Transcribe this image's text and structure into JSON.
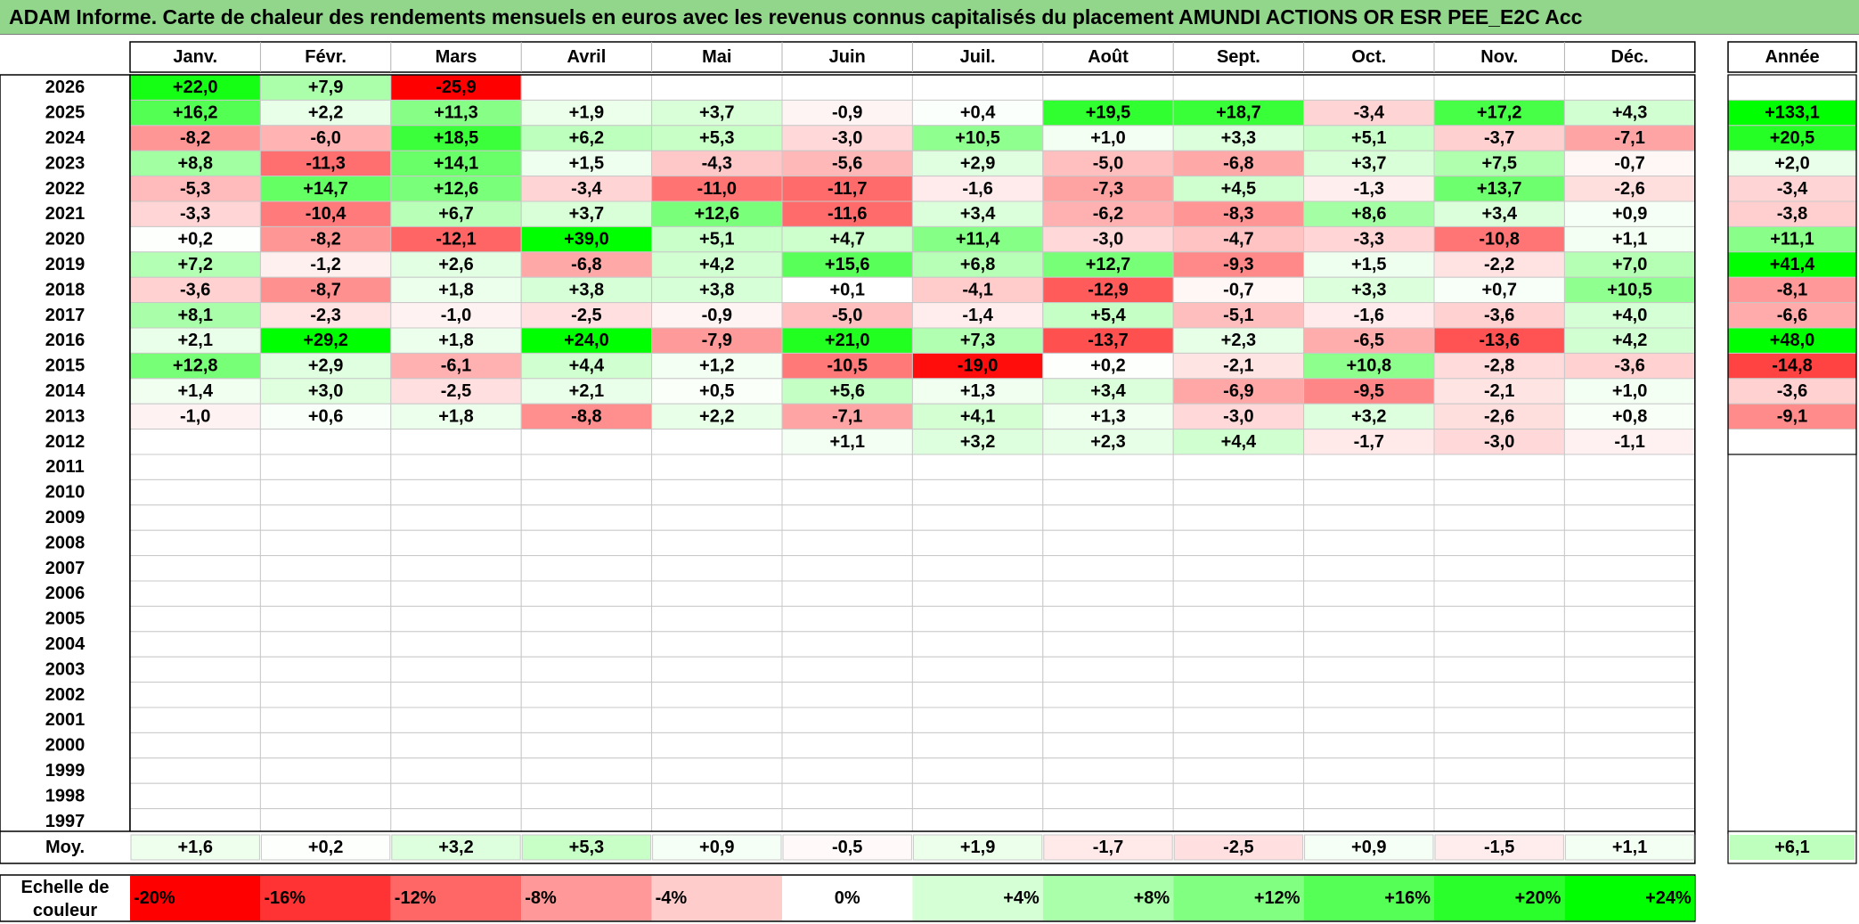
{
  "title": "ADAM Informe. Carte de chaleur des rendements mensuels en euros avec les revenus connus capitalisés du placement AMUNDI ACTIONS OR ESR PEE_E2C Acc",
  "chart_data": {
    "type": "heatmap",
    "months": [
      "Janv.",
      "Févr.",
      "Mars",
      "Avril",
      "Mai",
      "Juin",
      "Juil.",
      "Août",
      "Sept.",
      "Oct.",
      "Nov.",
      "Déc."
    ],
    "year_header": "Année",
    "rows": [
      {
        "year": "2026",
        "values": [
          22.0,
          7.9,
          -25.9,
          null,
          null,
          null,
          null,
          null,
          null,
          null,
          null,
          null
        ],
        "annual": null
      },
      {
        "year": "2025",
        "values": [
          16.2,
          2.2,
          11.3,
          1.9,
          3.7,
          -0.9,
          0.4,
          19.5,
          18.7,
          -3.4,
          17.2,
          4.3
        ],
        "annual": 133.1
      },
      {
        "year": "2024",
        "values": [
          -8.2,
          -6.0,
          18.5,
          6.2,
          5.3,
          -3.0,
          10.5,
          1.0,
          3.3,
          5.1,
          -3.7,
          -7.1
        ],
        "annual": 20.5
      },
      {
        "year": "2023",
        "values": [
          8.8,
          -11.3,
          14.1,
          1.5,
          -4.3,
          -5.6,
          2.9,
          -5.0,
          -6.8,
          3.7,
          7.5,
          -0.7
        ],
        "annual": 2.0
      },
      {
        "year": "2022",
        "values": [
          -5.3,
          14.7,
          12.6,
          -3.4,
          -11.0,
          -11.7,
          -1.6,
          -7.3,
          4.5,
          -1.3,
          13.7,
          -2.6
        ],
        "annual": -3.4
      },
      {
        "year": "2021",
        "values": [
          -3.3,
          -10.4,
          6.7,
          3.7,
          12.6,
          -11.6,
          3.4,
          -6.2,
          -8.3,
          8.6,
          3.4,
          0.9
        ],
        "annual": -3.8
      },
      {
        "year": "2020",
        "values": [
          0.2,
          -8.2,
          -12.1,
          39.0,
          5.1,
          4.7,
          11.4,
          -3.0,
          -4.7,
          -3.3,
          -10.8,
          1.1
        ],
        "annual": 11.1
      },
      {
        "year": "2019",
        "values": [
          7.2,
          -1.2,
          2.6,
          -6.8,
          4.2,
          15.6,
          6.8,
          12.7,
          -9.3,
          1.5,
          -2.2,
          7.0
        ],
        "annual": 41.4
      },
      {
        "year": "2018",
        "values": [
          -3.6,
          -8.7,
          1.8,
          3.8,
          3.8,
          0.1,
          -4.1,
          -12.9,
          -0.7,
          3.3,
          0.7,
          10.5
        ],
        "annual": -8.1
      },
      {
        "year": "2017",
        "values": [
          8.1,
          -2.3,
          -1.0,
          -2.5,
          -0.9,
          -5.0,
          -1.4,
          5.4,
          -5.1,
          -1.6,
          -3.6,
          4.0
        ],
        "annual": -6.6
      },
      {
        "year": "2016",
        "values": [
          2.1,
          29.2,
          1.8,
          24.0,
          -7.9,
          21.0,
          7.3,
          -13.7,
          2.3,
          -6.5,
          -13.6,
          4.2
        ],
        "annual": 48.0
      },
      {
        "year": "2015",
        "values": [
          12.8,
          2.9,
          -6.1,
          4.4,
          1.2,
          -10.5,
          -19.0,
          0.2,
          -2.1,
          10.8,
          -2.8,
          -3.6
        ],
        "annual": -14.8
      },
      {
        "year": "2014",
        "values": [
          1.4,
          3.0,
          -2.5,
          2.1,
          0.5,
          5.6,
          1.3,
          3.4,
          -6.9,
          -9.5,
          -2.1,
          1.0
        ],
        "annual": -3.6
      },
      {
        "year": "2013",
        "values": [
          -1.0,
          0.6,
          1.8,
          -8.8,
          2.2,
          -7.1,
          4.1,
          1.3,
          -3.0,
          3.2,
          -2.6,
          0.8
        ],
        "annual": -9.1
      },
      {
        "year": "2012",
        "values": [
          null,
          null,
          null,
          null,
          null,
          1.1,
          3.2,
          2.3,
          4.4,
          -1.7,
          -3.0,
          -1.1
        ],
        "annual": null
      },
      {
        "year": "2011",
        "values": [],
        "annual": null
      },
      {
        "year": "2010",
        "values": [],
        "annual": null
      },
      {
        "year": "2009",
        "values": [],
        "annual": null
      },
      {
        "year": "2008",
        "values": [],
        "annual": null
      },
      {
        "year": "2007",
        "values": [],
        "annual": null
      },
      {
        "year": "2006",
        "values": [],
        "annual": null
      },
      {
        "year": "2005",
        "values": [],
        "annual": null
      },
      {
        "year": "2004",
        "values": [],
        "annual": null
      },
      {
        "year": "2003",
        "values": [],
        "annual": null
      },
      {
        "year": "2002",
        "values": [],
        "annual": null
      },
      {
        "year": "2001",
        "values": [],
        "annual": null
      },
      {
        "year": "2000",
        "values": [],
        "annual": null
      },
      {
        "year": "1999",
        "values": [],
        "annual": null
      },
      {
        "year": "1998",
        "values": [],
        "annual": null
      },
      {
        "year": "1997",
        "values": [],
        "annual": null
      }
    ],
    "average_label": "Moy.",
    "averages": [
      1.6,
      0.2,
      3.2,
      5.3,
      0.9,
      -0.5,
      1.9,
      -1.7,
      -2.5,
      0.9,
      -1.5,
      1.1
    ],
    "average_annual": 6.1,
    "scale_label": [
      "Echelle de",
      "couleur"
    ],
    "scale": [
      {
        "label": "-20%",
        "value": -20
      },
      {
        "label": "-16%",
        "value": -16
      },
      {
        "label": "-12%",
        "value": -12
      },
      {
        "label": "-8%",
        "value": -8
      },
      {
        "label": "-4%",
        "value": -4
      },
      {
        "label": "0%",
        "value": 0
      },
      {
        "label": "+4%",
        "value": 4
      },
      {
        "label": "+8%",
        "value": 8
      },
      {
        "label": "+12%",
        "value": 12
      },
      {
        "label": "+16%",
        "value": 16
      },
      {
        "label": "+20%",
        "value": 20
      },
      {
        "label": "+24%",
        "value": 24
      }
    ],
    "colors": {
      "negative": "#ff0000",
      "neutral": "#ffffff",
      "positive": "#00ff00",
      "title_bg": "#92d68c"
    }
  }
}
